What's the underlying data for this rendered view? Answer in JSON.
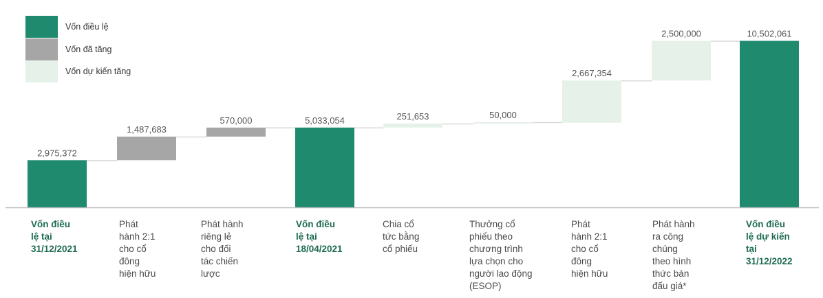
{
  "legend": [
    {
      "label": "Vốn điều lệ",
      "color": "#1f8a6e"
    },
    {
      "label": "Vốn đã tăng",
      "color": "#a6a6a6"
    },
    {
      "label": "Vốn dự kiến tăng",
      "color": "#e6f1e9"
    }
  ],
  "chart_data": {
    "type": "bar",
    "subtype": "waterfall",
    "ylim": [
      0,
      11000000
    ],
    "categories": [
      "Vốn điều lệ tại 31/12/2021",
      "Phát hành 2:1 cho cổ đông hiện hữu",
      "Phát hành riêng lẻ cho đối tác chiến lược",
      "Vốn điều lệ tại 18/04/2021",
      "Chia cổ tức bằng cổ phiếu",
      "Thưởng cổ phiếu theo chương trình lựa chọn cho người lao động (ESOP)",
      "Phát hành 2:1 cho cổ đông hiện hữu",
      "Phát hành ra công chúng theo hình thức bán đấu giá*",
      "Vốn điều lệ dự kiến tại 31/12/2022"
    ],
    "values": [
      2975372,
      1487683,
      570000,
      5033054,
      251653,
      50000,
      2667354,
      2500000,
      10502061
    ],
    "value_labels": [
      "2,975,372",
      "1,487,683",
      "570,000",
      "5,033,054",
      "251,653",
      "50,000",
      "2,667,354",
      "2,500,000",
      "10,502,061"
    ],
    "bar_kind": [
      "total",
      "increase",
      "increase",
      "total",
      "planned",
      "planned",
      "planned",
      "planned",
      "total"
    ],
    "category_lines": [
      [
        "Vốn điều",
        "lệ tại",
        "31/12/2021"
      ],
      [
        "Phát",
        "hành 2:1",
        "cho cổ",
        "đông",
        "hiện hữu"
      ],
      [
        "Phát hành",
        "riêng lẻ",
        "cho đối",
        "tác chiến",
        "lược"
      ],
      [
        "Vốn điều",
        "lệ tại",
        "18/04/2021"
      ],
      [
        "Chia cổ",
        "tức bằng",
        "cổ phiếu"
      ],
      [
        "Thưởng cổ",
        "phiếu theo",
        "chương trình",
        "lựa chọn cho",
        "người lao động",
        "(ESOP)"
      ],
      [
        "Phát",
        "hành 2:1",
        "cho cổ",
        "đông",
        "hiện hữu"
      ],
      [
        "Phát hành",
        "ra công",
        "chúng",
        "theo hình",
        "thức bán",
        "đấu giá*"
      ],
      [
        "Vốn điều",
        "lệ dự kiến",
        "tại",
        "31/12/2022"
      ]
    ]
  }
}
